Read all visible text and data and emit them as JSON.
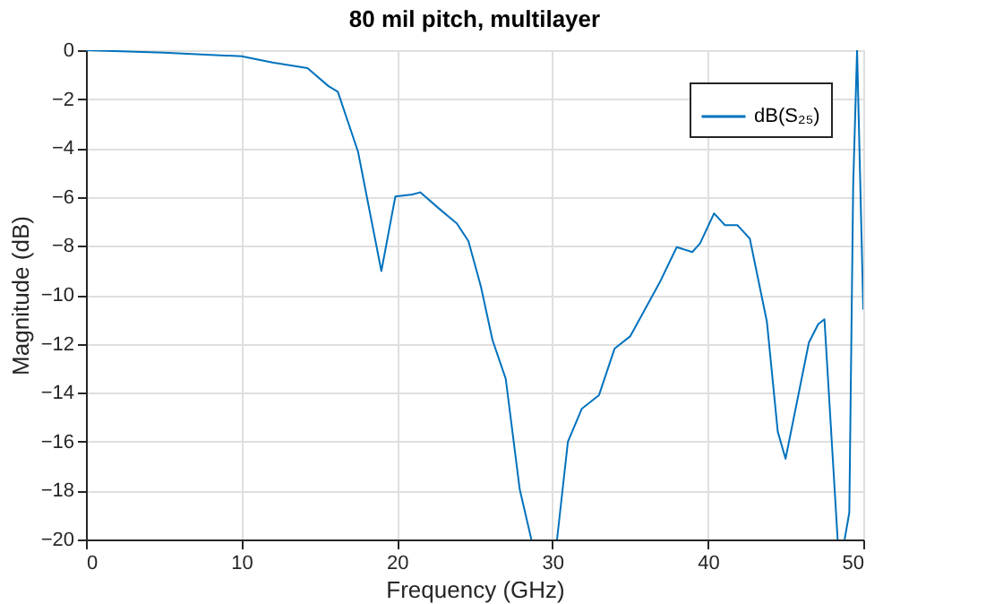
{
  "chart_data": {
    "type": "line",
    "title": "80 mil pitch, multilayer",
    "xlabel": "Frequency (GHz)",
    "ylabel": "Magnitude (dB)",
    "xlim": [
      0,
      50
    ],
    "xticks": [
      0,
      10,
      20,
      30,
      40,
      50
    ],
    "ylim": [
      -20,
      0
    ],
    "yticks": [
      -20,
      -18,
      -16,
      -14,
      -12,
      -10,
      -8,
      -6,
      -4,
      -2,
      0
    ],
    "grid": true,
    "legend": "top right",
    "series": [
      {
        "name": "dB(S₂₅)",
        "color": "#0072bd",
        "x": [
          0,
          5,
          10,
          12,
          14.25,
          15.6,
          16.2,
          17.5,
          19.0,
          19.9,
          21.0,
          21.5,
          22.7,
          23.85,
          24.6,
          25.4,
          26.15,
          27.0,
          27.9,
          28.65,
          29.5,
          30.3,
          31.0,
          31.9,
          33.0,
          34.0,
          35.0,
          36.9,
          38.0,
          39.0,
          39.5,
          40.4,
          41.1,
          41.9,
          42.7,
          43.8,
          44.5,
          45.0,
          46.5,
          47.1,
          47.5,
          48.35,
          48.6,
          48.8,
          49.1,
          49.35,
          49.6,
          50
        ],
        "values": [
          0,
          -0.1,
          -0.25,
          -0.5,
          -0.73,
          -1.47,
          -1.7,
          -4.15,
          -9.03,
          -5.98,
          -5.9,
          -5.81,
          -6.47,
          -7.08,
          -7.8,
          -9.65,
          -11.85,
          -13.43,
          -17.95,
          -20,
          null,
          -20,
          -16,
          -14.65,
          -14.1,
          -12.2,
          -11.7,
          -9.5,
          -8.05,
          -8.25,
          -7.9,
          -6.67,
          -7.15,
          -7.15,
          -7.7,
          -11.1,
          -15.6,
          -16.7,
          -11.95,
          -11.2,
          -11.0,
          -20,
          null,
          -20,
          -18.9,
          -5.5,
          0,
          -10.6
        ]
      }
    ]
  }
}
